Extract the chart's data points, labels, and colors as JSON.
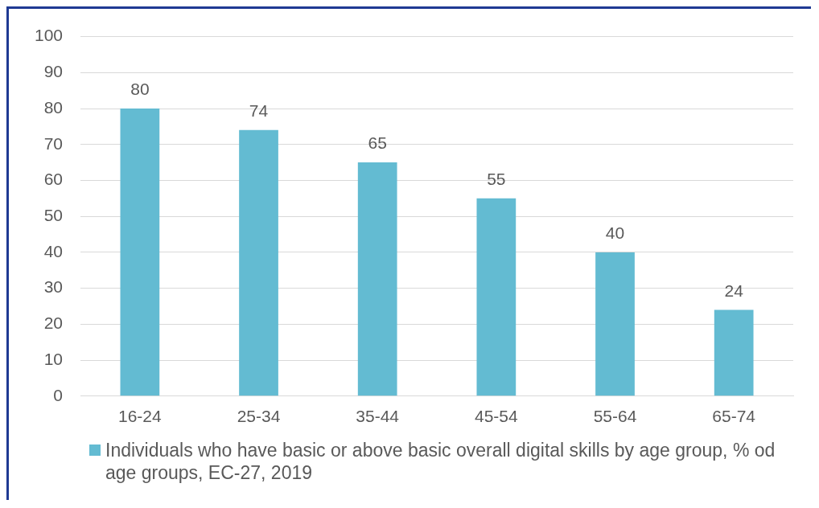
{
  "chart_data": {
    "type": "bar",
    "categories": [
      "16-24",
      "25-34",
      "35-44",
      "45-54",
      "55-64",
      "65-74"
    ],
    "series": [
      {
        "name": "Individuals who have basic or above basic overall digital skills by age group, % od age groups, EC-27, 2019",
        "color": "#63bbd2",
        "values": [
          80,
          74,
          65,
          55,
          40,
          24
        ]
      }
    ],
    "ylim": [
      0,
      100
    ],
    "yticks": [
      0,
      10,
      20,
      30,
      40,
      50,
      60,
      70,
      80,
      90,
      100
    ],
    "grid": "y",
    "legend": "bottom",
    "data_labels": true
  }
}
